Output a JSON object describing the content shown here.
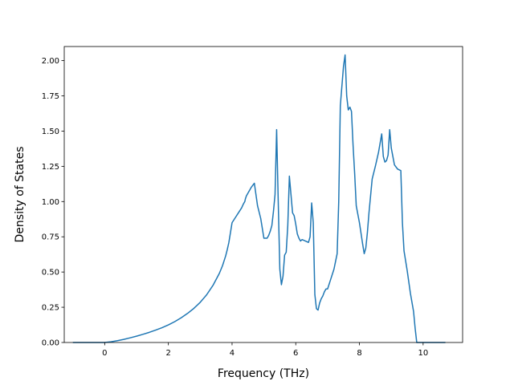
{
  "chart_data": {
    "type": "line",
    "title": "",
    "xlabel": "Frequency (THz)",
    "ylabel": "Density of States",
    "xlim": [
      -1.27,
      11.24
    ],
    "ylim": [
      0.0,
      2.1
    ],
    "grid": false,
    "xticks": [
      0,
      2,
      4,
      6,
      8,
      10
    ],
    "yticks": [
      0.0,
      0.25,
      0.5,
      0.75,
      1.0,
      1.25,
      1.5,
      1.75,
      2.0
    ],
    "xtick_labels": [
      "0",
      "2",
      "4",
      "6",
      "8",
      "10"
    ],
    "ytick_labels": [
      "0.00",
      "0.25",
      "0.50",
      "0.75",
      "1.00",
      "1.25",
      "1.50",
      "1.75",
      "2.00"
    ],
    "line_color": "#1f77b4",
    "series": [
      {
        "x": [
          -1.0,
          -0.5,
          0.0,
          0.2,
          0.4,
          0.6,
          0.8,
          1.0,
          1.2,
          1.4,
          1.6,
          1.8,
          2.0,
          2.2,
          2.4,
          2.6,
          2.8,
          3.0,
          3.2,
          3.4,
          3.6,
          3.7,
          3.8,
          3.85,
          3.9,
          4.0,
          4.1,
          4.2,
          4.3,
          4.35,
          4.4,
          4.42,
          4.45,
          4.5,
          4.55,
          4.6,
          4.7,
          4.8,
          4.9,
          5.0,
          5.1,
          5.15,
          5.2,
          5.25,
          5.28,
          5.3,
          5.35,
          5.4,
          5.45,
          5.5,
          5.55,
          5.6,
          5.65,
          5.7,
          5.75,
          5.8,
          5.85,
          5.9,
          5.95,
          6.0,
          6.05,
          6.1,
          6.15,
          6.2,
          6.3,
          6.4,
          6.45,
          6.5,
          6.55,
          6.6,
          6.65,
          6.7,
          6.75,
          6.8,
          6.85,
          6.9,
          6.95,
          7.0,
          7.1,
          7.2,
          7.3,
          7.35,
          7.4,
          7.45,
          7.5,
          7.55,
          7.6,
          7.65,
          7.7,
          7.75,
          7.8,
          7.85,
          7.9,
          8.0,
          8.1,
          8.15,
          8.2,
          8.25,
          8.3,
          8.4,
          8.5,
          8.6,
          8.7,
          8.75,
          8.8,
          8.85,
          8.9,
          8.95,
          9.0,
          9.05,
          9.1,
          9.2,
          9.3,
          9.35,
          9.4,
          9.5,
          9.6,
          9.7,
          9.75,
          9.8,
          10.0,
          10.7
        ],
        "y": [
          0.0,
          0.0,
          0.0,
          0.005,
          0.013,
          0.022,
          0.033,
          0.045,
          0.058,
          0.072,
          0.088,
          0.105,
          0.125,
          0.148,
          0.175,
          0.206,
          0.242,
          0.285,
          0.338,
          0.405,
          0.49,
          0.545,
          0.615,
          0.66,
          0.71,
          0.85,
          0.885,
          0.92,
          0.955,
          0.98,
          1.0,
          1.02,
          1.04,
          1.06,
          1.08,
          1.1,
          1.13,
          0.97,
          0.88,
          0.74,
          0.74,
          0.76,
          0.79,
          0.83,
          0.89,
          0.93,
          1.05,
          1.51,
          1.0,
          0.52,
          0.41,
          0.47,
          0.62,
          0.64,
          0.83,
          1.18,
          1.05,
          0.92,
          0.9,
          0.84,
          0.77,
          0.74,
          0.72,
          0.73,
          0.72,
          0.71,
          0.75,
          0.99,
          0.85,
          0.34,
          0.24,
          0.23,
          0.28,
          0.31,
          0.33,
          0.36,
          0.38,
          0.38,
          0.45,
          0.52,
          0.63,
          1.0,
          1.68,
          1.82,
          1.96,
          2.04,
          1.75,
          1.65,
          1.67,
          1.64,
          1.4,
          1.2,
          0.97,
          0.85,
          0.7,
          0.63,
          0.67,
          0.78,
          0.92,
          1.16,
          1.25,
          1.35,
          1.48,
          1.32,
          1.28,
          1.29,
          1.33,
          1.51,
          1.38,
          1.32,
          1.26,
          1.23,
          1.22,
          0.85,
          0.65,
          0.51,
          0.35,
          0.22,
          0.1,
          0.0,
          0.0,
          0.0
        ]
      }
    ]
  }
}
